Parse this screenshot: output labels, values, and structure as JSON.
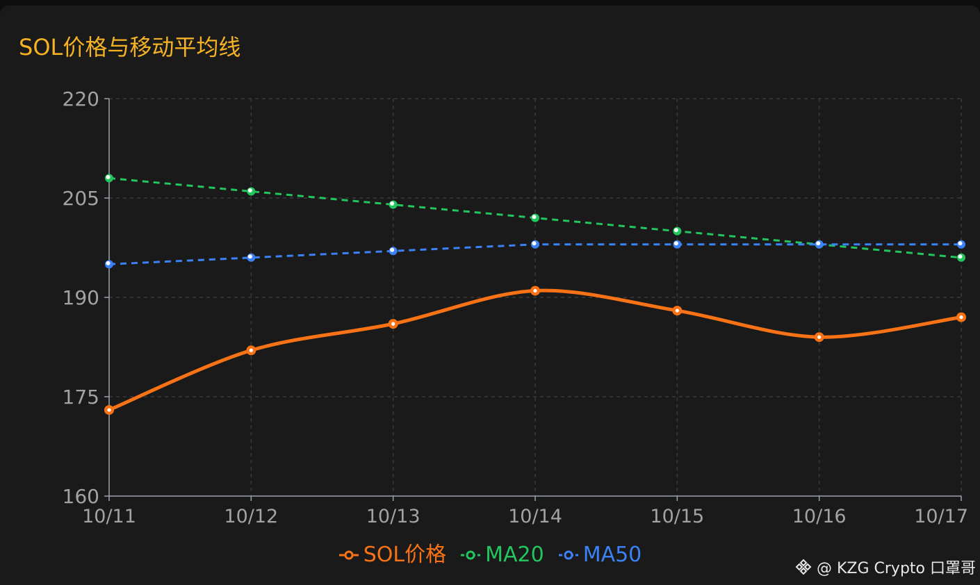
{
  "title": "SOL价格与移动平均线",
  "watermark": "@ KZG Crypto 口罩哥",
  "colors": {
    "title": "#f5b324",
    "sol": "#f97316",
    "ma20": "#22c55e",
    "ma50": "#3b82f6",
    "axis": "#9ca3af",
    "grid": "#3a3a3a"
  },
  "chart_data": {
    "type": "line",
    "x": [
      "10/11",
      "10/12",
      "10/13",
      "10/14",
      "10/15",
      "10/16",
      "10/17"
    ],
    "ylim": [
      160,
      220
    ],
    "yticks": [
      160,
      175,
      190,
      205,
      220
    ],
    "grid": true,
    "legend_position": "bottom",
    "series": [
      {
        "name": "SOL价格",
        "values": [
          173,
          182,
          186,
          191,
          188,
          184,
          187
        ],
        "style": "solid-smooth",
        "color": "#f97316"
      },
      {
        "name": "MA20",
        "values": [
          208,
          206,
          204,
          202,
          200,
          198,
          196
        ],
        "style": "dashed",
        "color": "#22c55e"
      },
      {
        "name": "MA50",
        "values": [
          195,
          196,
          197,
          198,
          198,
          198,
          198
        ],
        "style": "dashed",
        "color": "#3b82f6"
      }
    ]
  }
}
